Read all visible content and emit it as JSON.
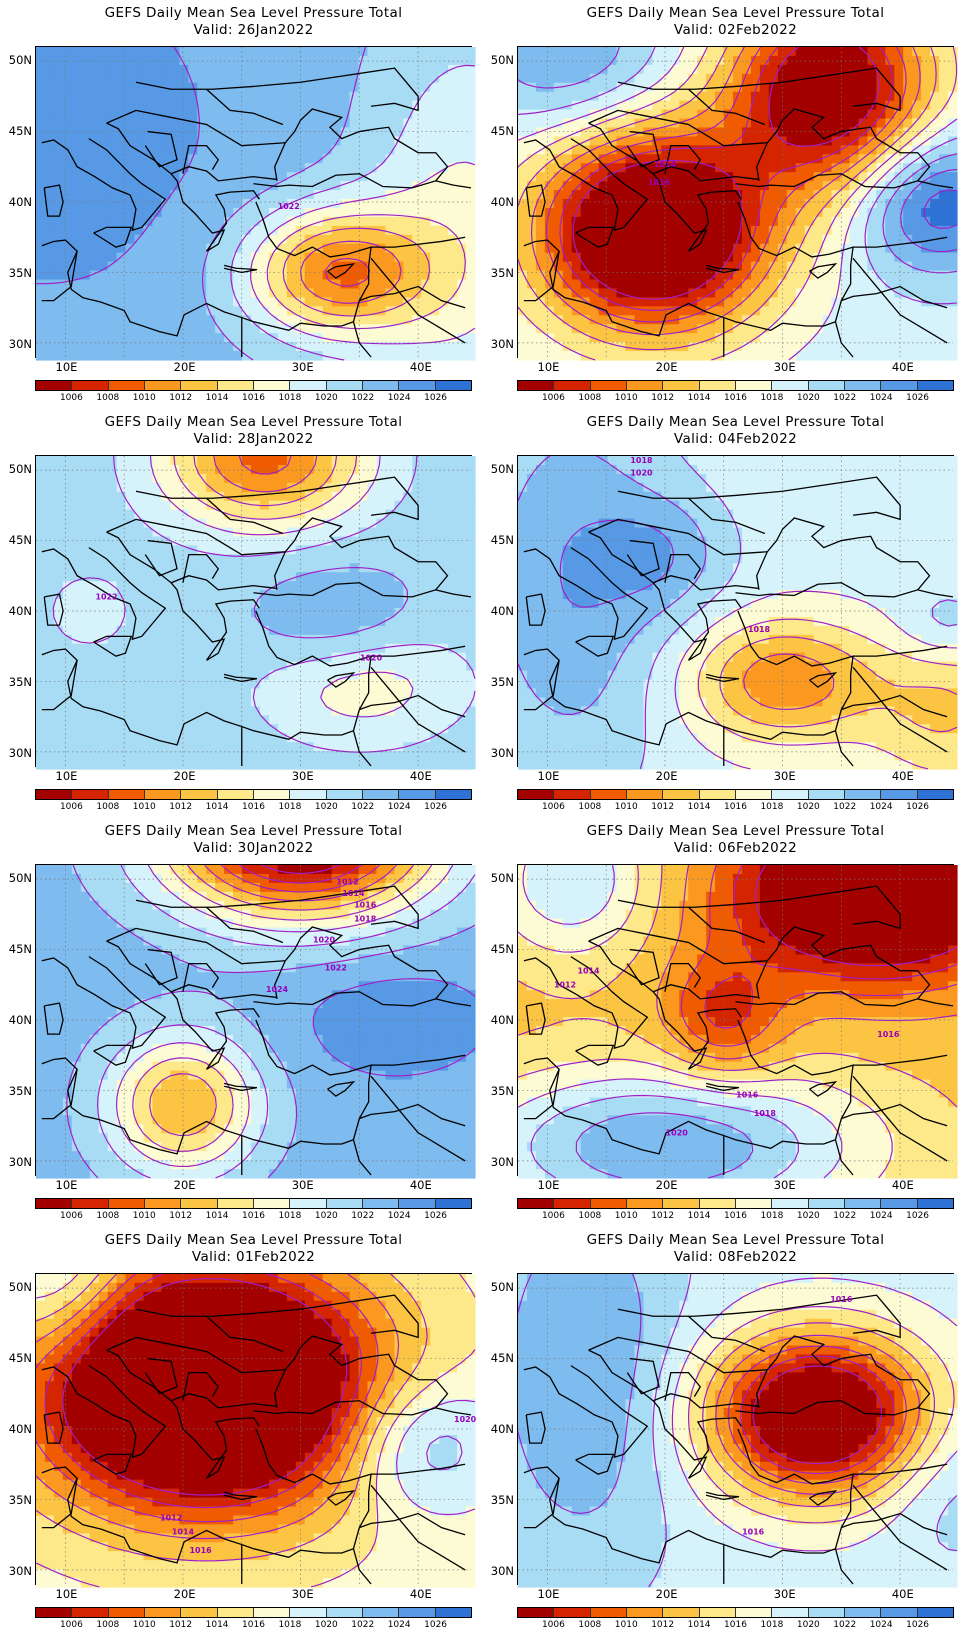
{
  "common": {
    "title": "GEFS Daily Mean Sea Level Pressure Total",
    "lat_labels": [
      "50N",
      "45N",
      "40N",
      "35N",
      "30N"
    ],
    "lon_labels": [
      "10E",
      "20E",
      "30E",
      "40E"
    ],
    "colorbar": {
      "labels": [
        "1006",
        "1008",
        "1010",
        "1012",
        "1014",
        "1016",
        "1018",
        "1020",
        "1022",
        "1024",
        "1026"
      ],
      "colors": [
        "#a30000",
        "#d42400",
        "#f05a00",
        "#fa9820",
        "#fcc443",
        "#fde98a",
        "#fdfbd4",
        "#d6f3fb",
        "#a8dcf5",
        "#7ebbef",
        "#5799e5",
        "#2f72d5"
      ]
    },
    "contour_color": "#a020c8"
  },
  "panels": [
    {
      "valid": "Valid: 26Jan2022",
      "field": {
        "base": 9.2,
        "gx": 0.0,
        "gy": 0.0,
        "centers": [
          {
            "lon": 33,
            "lat": 35,
            "amp": -6.2,
            "sx": 5.5,
            "sy": 3.2
          },
          {
            "lon": 8,
            "lat": 45,
            "amp": 1.2,
            "sx": 15,
            "sy": 12
          },
          {
            "lon": 44,
            "lat": 38,
            "amp": -2.5,
            "sx": 6,
            "sy": 10
          }
        ]
      },
      "contour_labels": [
        {
          "text": "1022",
          "lon": 29,
          "lat": 39.5
        }
      ]
    },
    {
      "valid": "Valid: 02Feb2022",
      "field": {
        "base": 7.5,
        "gx": 0.0,
        "gy": 0.0,
        "centers": [
          {
            "lon": 19,
            "lat": 38,
            "amp": -10.5,
            "sx": 7,
            "sy": 5
          },
          {
            "lon": 34,
            "lat": 48,
            "amp": -8.5,
            "sx": 6,
            "sy": 5
          },
          {
            "lon": 43,
            "lat": 40,
            "amp": 4.5,
            "sx": 5,
            "sy": 3.5
          },
          {
            "lon": 12,
            "lat": 50,
            "amp": 2.5,
            "sx": 6,
            "sy": 4
          }
        ]
      },
      "contour_labels": [
        {
          "text": "1014",
          "lon": 20,
          "lat": 42.5
        },
        {
          "text": "1016",
          "lon": 19.5,
          "lat": 41.2
        }
      ]
    },
    {
      "valid": "Valid: 28Jan2022",
      "field": {
        "base": 8.6,
        "gx": 0.0,
        "gy": 0.0,
        "centers": [
          {
            "lon": 27,
            "lat": 51,
            "amp": -6.0,
            "sx": 6,
            "sy": 3.5
          },
          {
            "lon": 33,
            "lat": 39,
            "amp": 1.8,
            "sx": 5,
            "sy": 3
          },
          {
            "lon": 35,
            "lat": 35,
            "amp": -2.5,
            "sx": 6,
            "sy": 3
          },
          {
            "lon": 12,
            "lat": 40,
            "amp": -0.8,
            "sx": 4,
            "sy": 3
          }
        ]
      },
      "contour_labels": [
        {
          "text": "1022",
          "lon": 13.5,
          "lat": 40.8
        },
        {
          "text": "1020",
          "lon": 36,
          "lat": 36.5
        }
      ]
    },
    {
      "valid": "Valid: 04Feb2022",
      "field": {
        "base": 7.4,
        "gx": 0.0,
        "gy": 0.0,
        "centers": [
          {
            "lon": 30,
            "lat": 35,
            "amp": -4.2,
            "sx": 5.5,
            "sy": 3
          },
          {
            "lon": 12,
            "lat": 42,
            "amp": 2.5,
            "sx": 6,
            "sy": 10
          },
          {
            "lon": 20,
            "lat": 44,
            "amp": 1.8,
            "sx": 4,
            "sy": 3
          },
          {
            "lon": 44,
            "lat": 33,
            "amp": -2.5,
            "sx": 5,
            "sy": 4
          },
          {
            "lon": 44,
            "lat": 39,
            "amp": 1.5,
            "sx": 3,
            "sy": 2
          }
        ]
      },
      "contour_labels": [
        {
          "text": "1018",
          "lon": 18,
          "lat": 50.5
        },
        {
          "text": "1020",
          "lon": 18,
          "lat": 49.6
        },
        {
          "text": "1018",
          "lon": 28,
          "lat": 38.5
        }
      ]
    },
    {
      "valid": "Valid: 30Jan2022",
      "field": {
        "base": 9.5,
        "gx": 0.0,
        "gy": 0.0,
        "centers": [
          {
            "lon": 30,
            "lat": 53,
            "amp": -10.5,
            "sx": 8,
            "sy": 4
          },
          {
            "lon": 20,
            "lat": 34,
            "amp": -5.5,
            "sx": 4.5,
            "sy": 3.5
          },
          {
            "lon": 38,
            "lat": 40,
            "amp": 1.2,
            "sx": 6,
            "sy": 3
          }
        ]
      },
      "contour_labels": [
        {
          "text": "1012",
          "lon": 34,
          "lat": 49.6
        },
        {
          "text": "1014",
          "lon": 34.5,
          "lat": 48.8
        },
        {
          "text": "1016",
          "lon": 35.5,
          "lat": 48
        },
        {
          "text": "1018",
          "lon": 35.5,
          "lat": 47
        },
        {
          "text": "1020",
          "lon": 32,
          "lat": 45.5
        },
        {
          "text": "1022",
          "lon": 33,
          "lat": 43.5
        },
        {
          "text": "1024",
          "lon": 28,
          "lat": 42
        }
      ]
    },
    {
      "valid": "Valid: 06Feb2022",
      "field": {
        "base": 4.5,
        "gx": 0.0,
        "gy": 0.0,
        "centers": [
          {
            "lon": 38,
            "lat": 49,
            "amp": -8.0,
            "sx": 8,
            "sy": 4
          },
          {
            "lon": 25,
            "lat": 40,
            "amp": -3.0,
            "sx": 3.5,
            "sy": 3
          },
          {
            "lon": 20,
            "lat": 31,
            "amp": 5.5,
            "sx": 12,
            "sy": 4
          },
          {
            "lon": 12,
            "lat": 50,
            "amp": 3.5,
            "sx": 5,
            "sy": 4
          }
        ]
      },
      "contour_labels": [
        {
          "text": "1012",
          "lon": 11.5,
          "lat": 42.3
        },
        {
          "text": "1014",
          "lon": 13.5,
          "lat": 43.3
        },
        {
          "text": "1016",
          "lon": 39,
          "lat": 38.8
        },
        {
          "text": "1016",
          "lon": 27,
          "lat": 34.5
        },
        {
          "text": "1018",
          "lon": 28.5,
          "lat": 33.2
        },
        {
          "text": "1020",
          "lon": 21,
          "lat": 31.8
        }
      ]
    },
    {
      "valid": "Valid: 01Feb2022",
      "field": {
        "base": 6.5,
        "gx": 0.0,
        "gy": 0.0,
        "centers": [
          {
            "lon": 22,
            "lat": 43,
            "amp": -12.5,
            "sx": 10,
            "sy": 6
          },
          {
            "lon": 40,
            "lat": 39,
            "amp": 3.2,
            "sx": 5,
            "sy": 3.5
          },
          {
            "lon": 10,
            "lat": 50,
            "amp": 2.5,
            "sx": 4,
            "sy": 4
          }
        ]
      },
      "contour_labels": [
        {
          "text": "1012",
          "lon": 19,
          "lat": 33.5
        },
        {
          "text": "1014",
          "lon": 20,
          "lat": 32.5
        },
        {
          "text": "1016",
          "lon": 21.5,
          "lat": 31.2
        },
        {
          "text": "1020",
          "lon": 44,
          "lat": 40.5
        }
      ]
    },
    {
      "valid": "Valid: 08Feb2022",
      "field": {
        "base": 7.5,
        "gx": 0.0,
        "gy": 0.0,
        "centers": [
          {
            "lon": 33,
            "lat": 41,
            "amp": -9.5,
            "sx": 6.5,
            "sy": 4
          },
          {
            "lon": 13,
            "lat": 44,
            "amp": 2.5,
            "sx": 6,
            "sy": 10
          },
          {
            "lon": 44,
            "lat": 36,
            "amp": 1.2,
            "sx": 4,
            "sy": 4
          }
        ]
      },
      "contour_labels": [
        {
          "text": "1016",
          "lon": 35,
          "lat": 49
        },
        {
          "text": "1016",
          "lon": 27.5,
          "lat": 32.5
        }
      ]
    }
  ]
}
